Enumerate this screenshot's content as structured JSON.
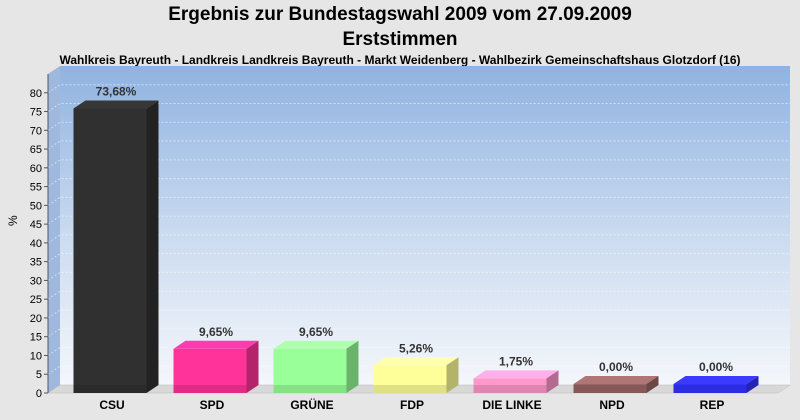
{
  "header": {
    "title_line1": "Ergebnis zur Bundestagswahl 2009 vom 27.09.2009",
    "title_line2": "Erststimmen",
    "subtitle": "Wahlkreis Bayreuth - Landkreis Landkreis Bayreuth - Markt Weidenberg - Wahlbezirk Gemeinschaftshaus Glotzdorf (16)"
  },
  "chart_data": {
    "type": "bar",
    "title": "Ergebnis zur Bundestagswahl 2009 vom 27.09.2009",
    "subtitle": "Erststimmen",
    "ylabel": "%",
    "xlabel": "",
    "ylim": [
      0,
      85
    ],
    "ytick_labels": [
      "0",
      "5",
      "10",
      "15",
      "20",
      "25",
      "30",
      "35",
      "40",
      "45",
      "50",
      "55",
      "60",
      "65",
      "70",
      "75",
      "80"
    ],
    "grid": true,
    "categories": [
      "CSU",
      "SPD",
      "GRÜNE",
      "FDP",
      "DIE LINKE",
      "NPD",
      "REP"
    ],
    "values": [
      73.68,
      9.65,
      9.65,
      5.26,
      1.75,
      0.0,
      0.0
    ],
    "data_labels": [
      "73,68%",
      "9,65%",
      "9,65%",
      "5,26%",
      "1,75%",
      "0,00%",
      "0,00%"
    ],
    "colors": [
      "#303030",
      "#ff3399",
      "#99ff99",
      "#ffff99",
      "#ff99cc",
      "#996666",
      "#3333ff"
    ]
  }
}
